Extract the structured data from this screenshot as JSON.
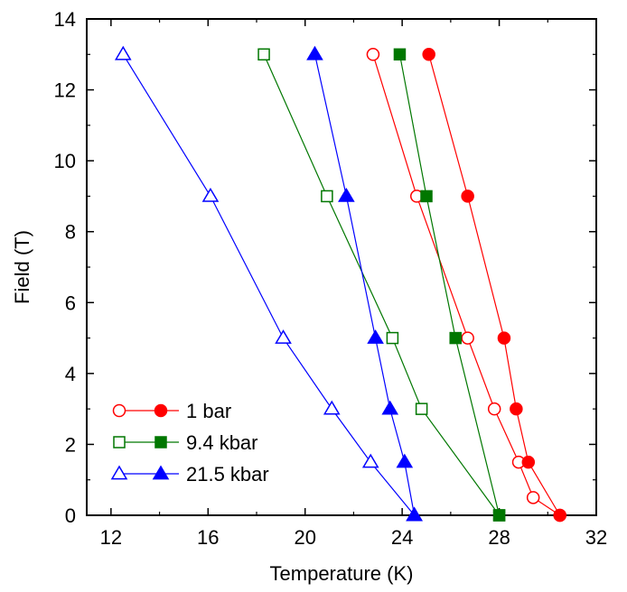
{
  "chart_data": {
    "type": "scatter",
    "xlabel": "Temperature (K)",
    "ylabel": "Field (T)",
    "xlim": [
      11,
      32
    ],
    "ylim": [
      0,
      14
    ],
    "xticks": [
      12,
      16,
      20,
      24,
      28,
      32
    ],
    "yticks": [
      0,
      2,
      4,
      6,
      8,
      10,
      12,
      14
    ],
    "xtick_labels": [
      "12",
      "16",
      "20",
      "24",
      "28",
      "32"
    ],
    "ytick_labels": [
      "0",
      "2",
      "4",
      "6",
      "8",
      "10",
      "12",
      "14"
    ],
    "grid": false,
    "legend_position": "bottom-left",
    "series": [
      {
        "name": "1 bar",
        "color": "#ff0000",
        "marker": "circle",
        "open": {
          "x": [
            30.5,
            29.4,
            28.8,
            27.8,
            26.7,
            24.6,
            22.8
          ],
          "y": [
            0,
            0.5,
            1.5,
            3,
            5,
            9,
            13
          ]
        },
        "filled": {
          "x": [
            30.5,
            29.2,
            28.7,
            28.2,
            26.7,
            25.1
          ],
          "y": [
            0,
            1.5,
            3,
            5,
            9,
            13
          ]
        }
      },
      {
        "name": "9.4 kbar",
        "color": "#007700",
        "marker": "square",
        "open": {
          "x": [
            28.0,
            24.8,
            23.6,
            20.9,
            18.3
          ],
          "y": [
            0,
            3,
            5,
            9,
            13
          ]
        },
        "filled": {
          "x": [
            28.0,
            26.2,
            25.0,
            23.9
          ],
          "y": [
            0,
            5,
            9,
            13
          ]
        }
      },
      {
        "name": "21.5 kbar",
        "color": "#0000ff",
        "marker": "triangle",
        "open": {
          "x": [
            24.5,
            22.7,
            21.1,
            19.1,
            16.1,
            12.5
          ],
          "y": [
            0,
            1.5,
            3,
            5,
            9,
            13
          ]
        },
        "filled": {
          "x": [
            24.5,
            24.1,
            23.5,
            22.9,
            21.7,
            20.4
          ],
          "y": [
            0,
            1.5,
            3,
            5,
            9,
            13
          ]
        }
      }
    ]
  }
}
